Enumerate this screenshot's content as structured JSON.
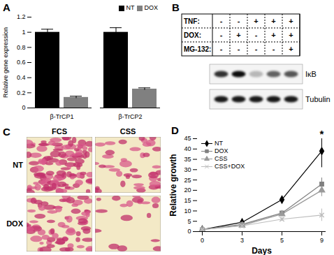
{
  "chart_data": [
    {
      "panel": "A",
      "type": "bar",
      "categories": [
        "β-TrCP1",
        "β-TrCP2"
      ],
      "series": [
        {
          "name": "NT",
          "color": "#000000",
          "values": [
            1,
            1
          ],
          "errors": [
            0.04,
            0.06
          ]
        },
        {
          "name": "DOX",
          "color": "#808080",
          "values": [
            0.14,
            0.25
          ],
          "errors": [
            0.015,
            0.015
          ]
        }
      ],
      "ylabel": "Relative gene expression",
      "ylim": [
        0,
        1.2
      ],
      "yticks": [
        0,
        0.2,
        0.4,
        0.6,
        0.8,
        1,
        1.2
      ],
      "legend": "upper right"
    },
    {
      "panel": "D",
      "type": "line",
      "categories": [
        "0",
        "3",
        "5",
        "9"
      ],
      "series": [
        {
          "name": "NT",
          "color": "#000000",
          "marker": "diamond",
          "values": [
            1,
            4.5,
            15.5,
            39
          ],
          "errors": [
            0.2,
            0.8,
            1.5,
            8
          ]
        },
        {
          "name": "DOX",
          "color": "#808080",
          "marker": "square",
          "values": [
            1,
            3.5,
            9,
            23
          ],
          "errors": [
            0.2,
            0.6,
            1,
            3
          ]
        },
        {
          "name": "CSS",
          "color": "#9a9a9a",
          "marker": "triangle",
          "values": [
            1,
            3,
            8.5,
            20
          ],
          "errors": [
            0.2,
            0.5,
            1,
            3
          ]
        },
        {
          "name": "CSS+DOX",
          "color": "#bdbdbd",
          "marker": "times",
          "values": [
            1,
            2.8,
            6,
            8
          ],
          "errors": [
            0.2,
            0.5,
            1,
            3
          ]
        }
      ],
      "xlabel": "Days",
      "ylabel": "Relative growth",
      "ylim": [
        0,
        45
      ],
      "yticks": [
        0,
        5,
        10,
        15,
        20,
        25,
        30,
        35,
        40,
        45
      ],
      "legend": "upper left",
      "annotations": [
        {
          "category": "9",
          "y": 47,
          "text": "*"
        }
      ]
    }
  ],
  "blot": {
    "panel": "B",
    "conditions": [
      {
        "name": "TNF:",
        "values": [
          "-",
          "-",
          "+",
          "+",
          "+"
        ]
      },
      {
        "name": "DOX:",
        "values": [
          "-",
          "+",
          "-",
          "+",
          "+"
        ]
      },
      {
        "name": "MG-132:",
        "values": [
          "-",
          "-",
          "-",
          "-",
          "+"
        ]
      }
    ],
    "bands": [
      {
        "name": "IκB",
        "intensity": [
          0.8,
          0.95,
          0.25,
          0.6,
          0.65
        ]
      },
      {
        "name": "Tubulin",
        "intensity": [
          0.9,
          0.9,
          0.9,
          0.9,
          0.9
        ]
      }
    ]
  },
  "micrographs": {
    "panel": "C",
    "columns": [
      "FCS",
      "CSS"
    ],
    "rows": [
      "NT",
      "DOX"
    ],
    "cell_density": [
      [
        0.9,
        0.35
      ],
      [
        0.6,
        0.15
      ]
    ]
  }
}
